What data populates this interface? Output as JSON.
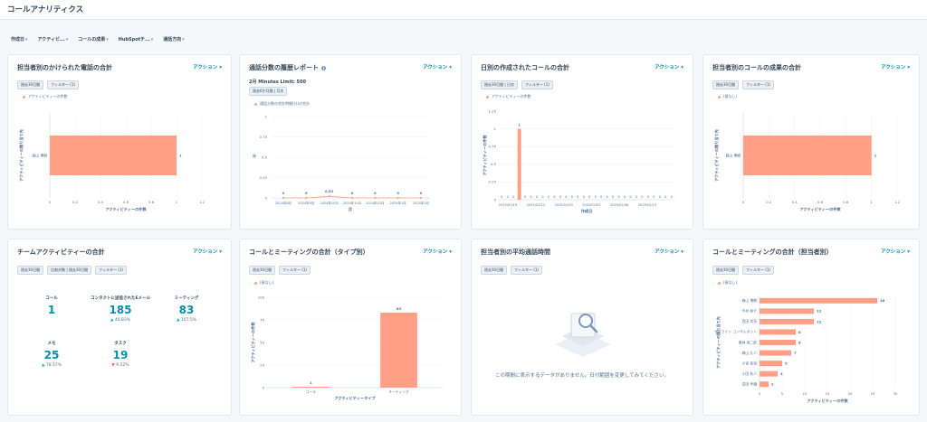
{
  "page": {
    "title": "コールアナリティクス"
  },
  "filters": [
    {
      "label": "作成日"
    },
    {
      "label": "アクティビ..."
    },
    {
      "label": "コールの成果"
    },
    {
      "label": "HubSpotチ..."
    },
    {
      "label": "通話方向"
    }
  ],
  "cards": {
    "c1": {
      "title": "担当者別のかけられた電話の合計",
      "action": "アクション",
      "pills": [
        "過去30日間",
        "フィルター (1)"
      ],
      "legend": "アクティビティーの件数",
      "chart_data": {
        "type": "bar",
        "orientation": "horizontal",
        "categories": [
          "森山 博樹"
        ],
        "values": [
          1
        ],
        "xlabel": "アクティビティーの件数",
        "ylabel": "アクティビティーの割り当て先",
        "xticks": [
          "0",
          "0.2",
          "0.4",
          "0.6",
          "0.8",
          "1",
          "1.2"
        ],
        "xlim": [
          0,
          1.2
        ]
      }
    },
    "c2": {
      "title": "通話分数の履歴レポート",
      "action": "アクション",
      "subtitle": "2月 Minutes Limit: 500",
      "pills": [
        "過去6か月間 | 月次"
      ],
      "legend": "通話分数の合計時間(分)の合計",
      "chart_data": {
        "type": "line",
        "categories": [
          "2024年8月",
          "2024年9月",
          "2024年10月",
          "2024年11月",
          "2024年12月",
          "2025年1月",
          "2025年2月"
        ],
        "values": [
          0,
          0,
          0.02,
          0,
          0,
          0,
          0
        ],
        "value_labels": [
          "0",
          "0",
          "0.02",
          "0",
          "0",
          "0",
          "0"
        ],
        "xlabel": "月",
        "ylabel": "分",
        "yticks": [
          "0",
          "0.25",
          "0.5",
          "0.75",
          "1"
        ],
        "ylim": [
          0,
          1
        ]
      }
    },
    "c3": {
      "title": "日別の作成されたコールの合計",
      "action": "アクション",
      "pills": [
        "過去30日間 | 日次",
        "フィルター (1)"
      ],
      "legend": "アクティビティーの件数",
      "chart_data": {
        "type": "bar",
        "values": [
          0,
          0,
          0,
          1,
          0,
          0,
          0,
          0,
          0,
          0,
          0,
          0,
          0,
          0,
          0,
          0,
          0,
          0,
          0,
          0,
          0,
          0,
          0,
          0,
          0,
          0,
          0,
          0,
          0,
          0
        ],
        "label_on_bar": "1",
        "zero_label": "0",
        "xticks": [
          "2025/01/19",
          "2025/01/24",
          "2025/01/29",
          "2025/02/03",
          "2025/02/08",
          "2025/02/13"
        ],
        "xlabel": "作成日",
        "ylabel": "アクティビティーの件数",
        "yticks": [
          "0",
          "0.25",
          "0.5",
          "0.75",
          "1",
          "1.25"
        ],
        "ylim": [
          0,
          1.25
        ]
      }
    },
    "c4": {
      "title": "担当者別のコールの成果の合計",
      "action": "アクション",
      "pills": [
        "過去30日間",
        "フィルター (1)"
      ],
      "legend": "(値なし)",
      "chart_data": {
        "type": "bar",
        "orientation": "horizontal",
        "categories": [
          "森山 博樹"
        ],
        "values": [
          1
        ],
        "xlabel": "アクティビティーの件数",
        "ylabel": "アクティビティーの割り当て先",
        "xticks": [
          "0",
          "0.2",
          "0.4",
          "0.6",
          "0.8",
          "1",
          "1.2"
        ],
        "xlim": [
          0,
          1.2
        ]
      }
    },
    "c5": {
      "title": "チームアクティビティーの合計",
      "action": "アクション",
      "pills": [
        "過去30日間",
        "比較対象 | 過去30日間",
        "フィルター (1)"
      ],
      "kpis": [
        {
          "label": "コール",
          "value": "1",
          "delta": ""
        },
        {
          "label": "コンタクトに送信されたEメール",
          "value": "185",
          "delta": "46.83%",
          "dir": "up"
        },
        {
          "label": "ミーティング",
          "value": "83",
          "delta": "107.5%",
          "dir": "up"
        },
        {
          "label": "メモ",
          "value": "25",
          "delta": "78.57%",
          "dir": "up"
        },
        {
          "label": "タスク",
          "value": "19",
          "delta": "9.52%",
          "dir": "down"
        }
      ]
    },
    "c6": {
      "title": "コールとミーティングの合計（タイプ別）",
      "action": "アクション",
      "pills": [
        "過去30日間",
        "フィルター (1)"
      ],
      "legend": "(値なし)",
      "chart_data": {
        "type": "bar",
        "categories": [
          "コール",
          "ミーティング"
        ],
        "values": [
          1,
          83
        ],
        "xlabel": "アクティビティータイプ",
        "ylabel": "アクティビティーの件数",
        "yticks": [
          "0",
          "25",
          "50",
          "75",
          "100"
        ],
        "ylim": [
          0,
          100
        ]
      }
    },
    "c7": {
      "title": "担当者別の平均通話時間",
      "action": "アクション",
      "pills": [
        "過去30日間",
        "フィルター (1)"
      ],
      "empty_message": "この期間に表示するデータがありません。日付範囲を変更してみてください。"
    },
    "c8": {
      "title": "コールとミーティングの合計（担当者別）",
      "action": "アクション",
      "pills": [
        "過去30日間",
        "フィルター (1)"
      ],
      "legend": "(値なし)",
      "chart_data": {
        "type": "bar",
        "orientation": "horizontal",
        "categories": [
          "森山 博樹",
          "今村 亮介",
          "西田 尚亮",
          "サテライト コンサルタント",
          "奥林 亮二郎",
          "森山 久人",
          "小宮 拓海",
          "小田 秋人",
          "岩田 早織"
        ],
        "values": [
          26,
          12,
          12,
          8,
          8,
          7,
          5,
          4,
          2
        ],
        "xlabel": "アクティビティーの件数",
        "ylabel": "アクティビティーの割り当て先",
        "xticks": [
          "0",
          "5",
          "10",
          "15",
          "20",
          "25",
          "30"
        ],
        "xlim": [
          0,
          30
        ]
      }
    }
  },
  "colors": {
    "bar": "#ff9f85",
    "accent": "#0091ae",
    "kpi_up": "#00bda5",
    "kpi_down": "#f2545b"
  },
  "icons": {
    "action_caret": "chevron-down-icon",
    "info": "info-icon",
    "empty": "magnifier-illustration"
  }
}
